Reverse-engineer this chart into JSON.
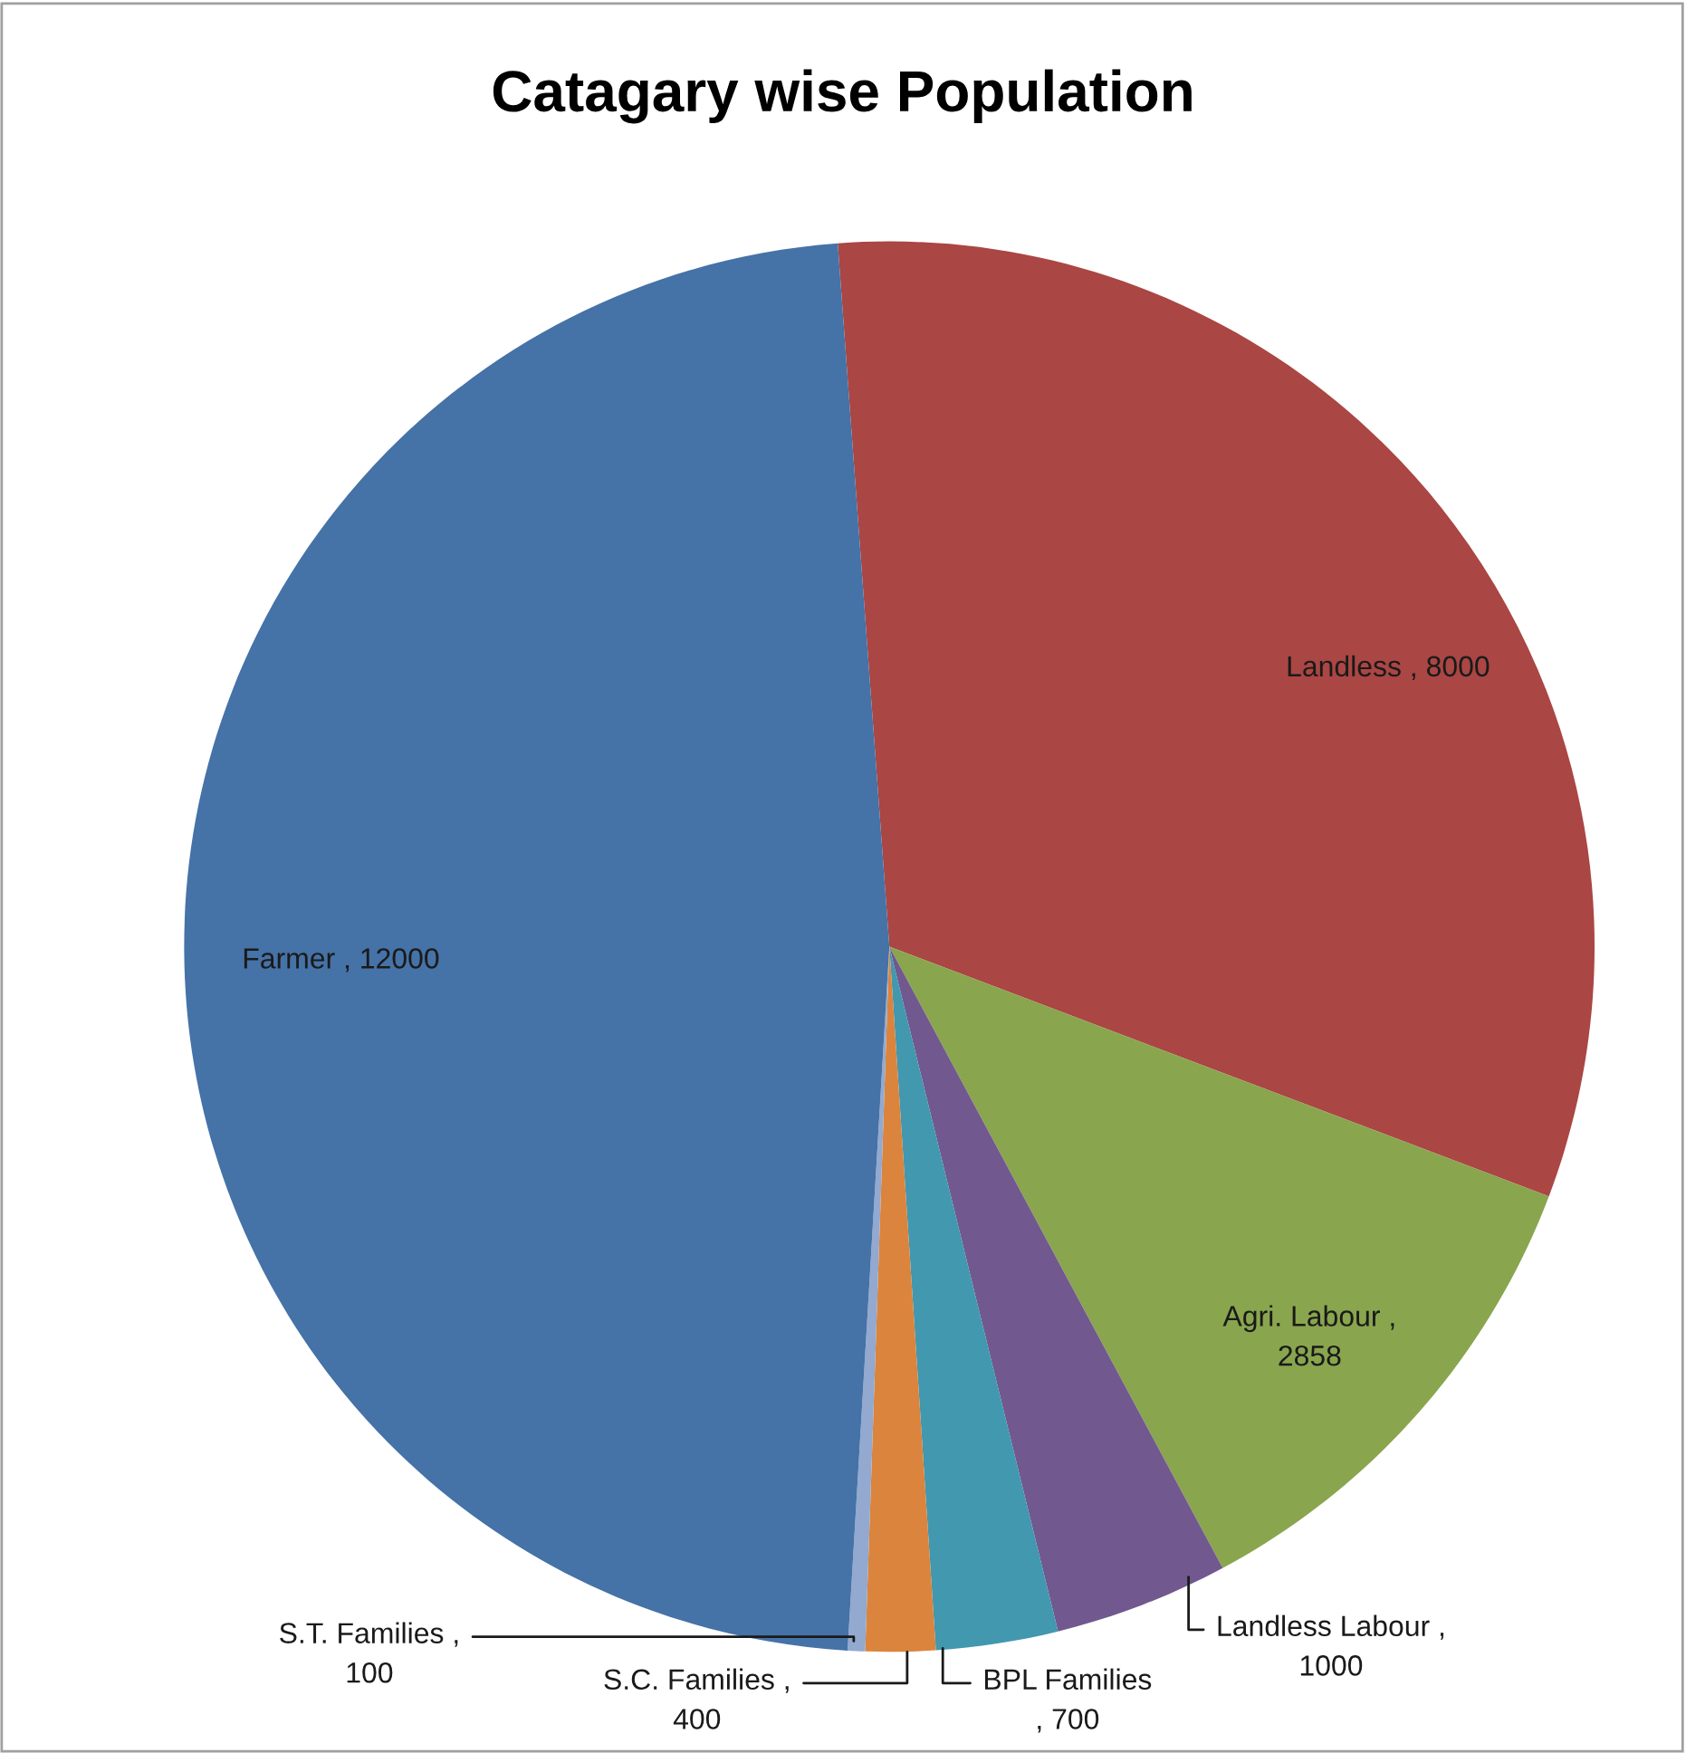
{
  "chart_data": {
    "type": "pie",
    "title": "Catagary wise Population",
    "categories": [
      "Landless",
      "Agri. Labour",
      "Landless Labour",
      "BPL Families",
      "S.C. Families",
      "S.T. Families",
      "Farmer"
    ],
    "values": [
      8000,
      2858,
      1000,
      700,
      400,
      100,
      12000
    ],
    "colors": [
      "#aa4643",
      "#89a54e",
      "#71588f",
      "#4198af",
      "#db843d",
      "#93a9cf",
      "#4572a7"
    ],
    "value_labels": [
      ", 8000",
      ",\n2858",
      ",\n1000",
      "\n, 700",
      ",\n400",
      ",\n100",
      ", 12000"
    ],
    "legend": false
  }
}
